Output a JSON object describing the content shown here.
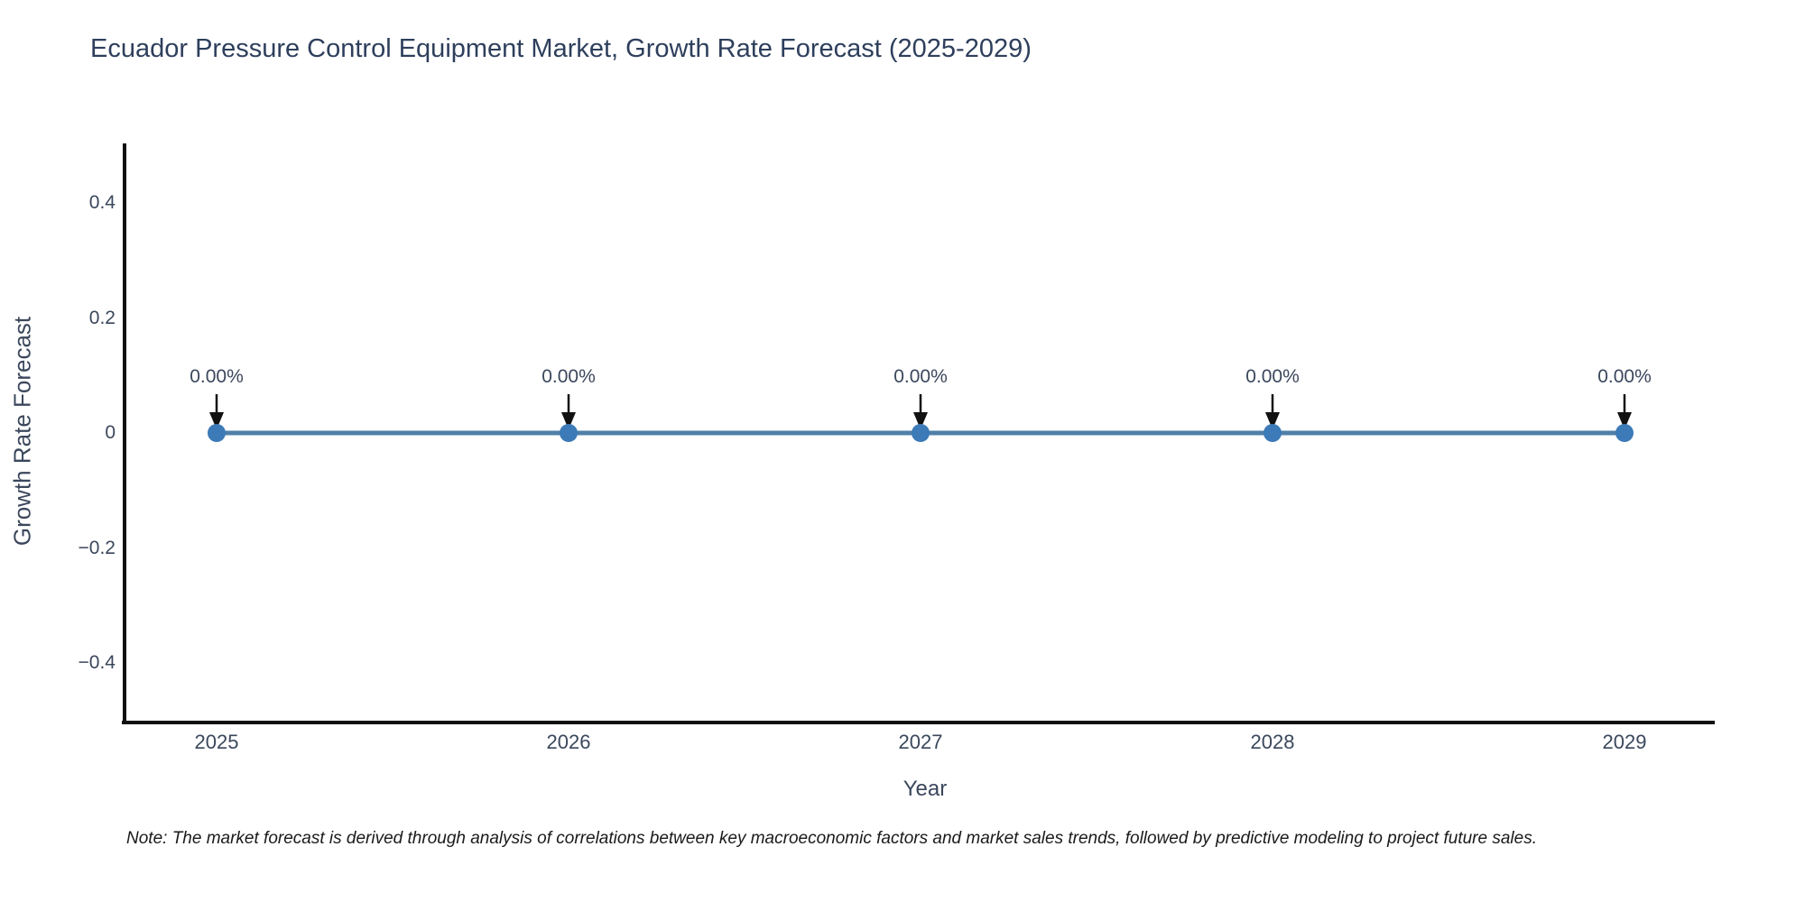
{
  "chart": {
    "title": "Ecuador Pressure Control Equipment Market, Growth Rate Forecast (2025-2029)",
    "xlabel": "Year",
    "ylabel": "Growth Rate Forecast",
    "note": "Note: The market forecast is derived through analysis of correlations between key macroeconomic factors and market sales trends, followed by predictive modeling to project future sales.",
    "colors": {
      "title_text": "#2e3f5c",
      "tick_text": "#3b475c",
      "axis_line": "#111111",
      "series_line": "#4e80a8",
      "marker_fill": "#3c7ab8",
      "arrow": "#111111",
      "background": "#ffffff"
    }
  },
  "chart_data": {
    "type": "line",
    "title": "Ecuador Pressure Control Equipment Market, Growth Rate Forecast (2025-2029)",
    "xlabel": "Year",
    "ylabel": "Growth Rate Forecast",
    "categories": [
      "2025",
      "2026",
      "2027",
      "2028",
      "2029"
    ],
    "x": [
      2025,
      2026,
      2027,
      2028,
      2029
    ],
    "values": [
      0,
      0,
      0,
      0,
      0
    ],
    "point_labels": [
      "0.00%",
      "0.00%",
      "0.00%",
      "0.00%",
      "0.00%"
    ],
    "yticks": [
      {
        "value": 0.4,
        "label": "0.4"
      },
      {
        "value": 0.2,
        "label": "0.2"
      },
      {
        "value": 0,
        "label": "0"
      },
      {
        "value": -0.2,
        "label": "−0.2"
      },
      {
        "value": -0.4,
        "label": "−0.4"
      }
    ],
    "ylim": [
      -0.5,
      0.5
    ],
    "grid": false,
    "legend": false,
    "annotation_style": "down-arrow"
  }
}
